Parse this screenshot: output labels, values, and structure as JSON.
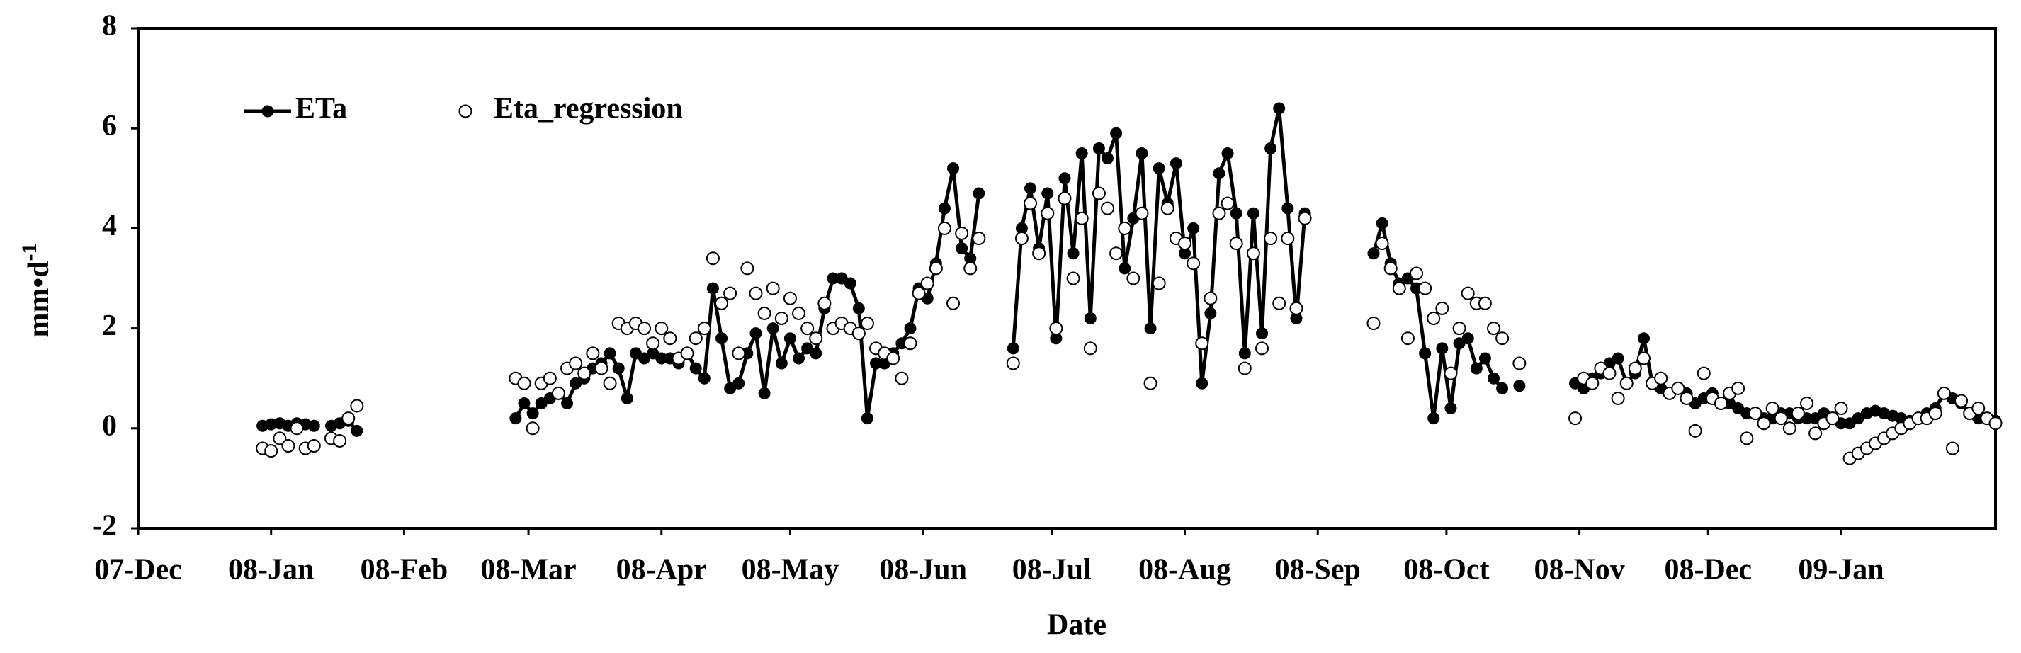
{
  "chart_data": {
    "type": "line",
    "x_label": "Date",
    "y_label": "mm•d",
    "y_label_superscript": "-1",
    "xlim": [
      0,
      433
    ],
    "ylim": [
      -2,
      8
    ],
    "yticks": [
      -2,
      0,
      2,
      4,
      6,
      8
    ],
    "xticks": [
      {
        "value": 0,
        "label": "07-Dec"
      },
      {
        "value": 31,
        "label": "08-Jan"
      },
      {
        "value": 62,
        "label": "08-Feb"
      },
      {
        "value": 91,
        "label": "08-Mar"
      },
      {
        "value": 122,
        "label": "08-Apr"
      },
      {
        "value": 152,
        "label": "08-May"
      },
      {
        "value": 183,
        "label": "08-Jun"
      },
      {
        "value": 213,
        "label": "08-Jul"
      },
      {
        "value": 244,
        "label": "08-Aug"
      },
      {
        "value": 275,
        "label": "08-Sep"
      },
      {
        "value": 305,
        "label": "08-Oct"
      },
      {
        "value": 336,
        "label": "08-Nov"
      },
      {
        "value": 366,
        "label": "08-Dec"
      },
      {
        "value": 397,
        "label": "09-Jan"
      }
    ],
    "grid": false,
    "legend_position": "upper left",
    "x": [
      29,
      31,
      33,
      35,
      37,
      39,
      41,
      43,
      45,
      47,
      49,
      51,
      70,
      88,
      90,
      92,
      94,
      96,
      98,
      100,
      102,
      104,
      106,
      108,
      110,
      112,
      114,
      116,
      118,
      120,
      122,
      124,
      126,
      128,
      130,
      132,
      134,
      136,
      138,
      140,
      142,
      144,
      146,
      148,
      150,
      152,
      154,
      156,
      158,
      160,
      162,
      164,
      166,
      168,
      170,
      172,
      174,
      176,
      178,
      180,
      182,
      184,
      186,
      188,
      190,
      192,
      194,
      196,
      200,
      204,
      206,
      208,
      210,
      212,
      214,
      216,
      218,
      220,
      222,
      224,
      226,
      228,
      230,
      232,
      234,
      236,
      238,
      240,
      242,
      244,
      246,
      248,
      250,
      252,
      254,
      256,
      258,
      260,
      262,
      264,
      266,
      268,
      270,
      272,
      280,
      288,
      290,
      292,
      294,
      296,
      298,
      300,
      302,
      304,
      306,
      308,
      310,
      312,
      314,
      316,
      318,
      320,
      322,
      328,
      335,
      337,
      339,
      341,
      343,
      345,
      347,
      349,
      351,
      353,
      355,
      357,
      359,
      361,
      363,
      365,
      367,
      369,
      371,
      373,
      375,
      377,
      379,
      381,
      383,
      385,
      387,
      389,
      391,
      393,
      395,
      397,
      399,
      401,
      403,
      405,
      407,
      409,
      411,
      413,
      415,
      417,
      419,
      421,
      423,
      425,
      427,
      429,
      431,
      433
    ],
    "series": [
      {
        "name": "ETa",
        "color": "#000000",
        "style": "line",
        "values": [
          0.05,
          0.08,
          0.1,
          0.05,
          0.1,
          0.08,
          0.05,
          null,
          0.05,
          0.1,
          0.15,
          -0.05,
          null,
          0.2,
          0.5,
          0.3,
          0.5,
          0.6,
          0.7,
          0.5,
          0.9,
          1.0,
          1.2,
          1.3,
          1.5,
          1.2,
          0.6,
          1.5,
          1.4,
          1.5,
          1.4,
          1.4,
          1.3,
          1.5,
          1.2,
          1.0,
          2.8,
          1.8,
          0.8,
          0.9,
          1.5,
          1.9,
          0.7,
          2.0,
          1.3,
          1.8,
          1.4,
          1.6,
          1.5,
          2.4,
          3.0,
          3.0,
          2.9,
          2.4,
          0.2,
          1.3,
          1.3,
          1.5,
          1.7,
          2.0,
          2.8,
          2.6,
          3.3,
          4.4,
          5.2,
          3.6,
          3.4,
          4.7,
          null,
          1.6,
          4.0,
          4.8,
          3.6,
          4.7,
          1.8,
          5.0,
          3.5,
          5.5,
          2.2,
          5.6,
          5.4,
          5.9,
          3.2,
          4.2,
          5.5,
          2.0,
          5.2,
          4.5,
          5.3,
          3.5,
          4.0,
          0.9,
          2.3,
          5.1,
          5.5,
          4.3,
          1.5,
          4.3,
          1.9,
          5.6,
          6.4,
          4.4,
          2.2,
          4.3,
          null,
          3.5,
          4.1,
          3.3,
          2.9,
          3.0,
          2.8,
          1.5,
          0.2,
          1.6,
          0.4,
          1.7,
          1.8,
          1.2,
          1.4,
          1.0,
          0.8,
          null,
          0.85,
          null,
          0.9,
          0.8,
          1.0,
          1.1,
          1.3,
          1.4,
          0.9,
          1.1,
          1.8,
          0.9,
          0.8,
          0.7,
          0.8,
          0.7,
          0.5,
          0.6,
          0.7,
          0.5,
          0.5,
          0.4,
          0.3,
          0.3,
          0.2,
          0.2,
          0.3,
          0.3,
          0.2,
          0.2,
          0.2,
          0.3,
          0.2,
          0.1,
          0.1,
          0.2,
          0.3,
          0.35,
          0.3,
          0.25,
          0.2,
          0.15,
          0.2,
          0.3,
          0.4,
          0.7,
          0.6,
          0.5,
          0.3,
          0.2,
          0.2,
          0.15
        ]
      },
      {
        "name": "Eta_regression",
        "color": "#ffffff",
        "style": "markers",
        "values": [
          -0.4,
          -0.45,
          -0.2,
          -0.35,
          0,
          -0.4,
          -0.35,
          null,
          -0.2,
          -0.25,
          0.2,
          0.45,
          null,
          1.0,
          0.9,
          0.0,
          0.9,
          1.0,
          0.7,
          1.2,
          1.3,
          1.1,
          1.5,
          1.2,
          0.9,
          2.1,
          2.0,
          2.1,
          2.0,
          1.7,
          2.0,
          1.8,
          1.4,
          1.5,
          1.8,
          2.0,
          3.4,
          2.5,
          2.7,
          1.5,
          3.2,
          2.7,
          2.3,
          2.8,
          2.2,
          2.6,
          2.3,
          2.0,
          1.8,
          2.5,
          2.0,
          2.1,
          2.0,
          1.9,
          2.1,
          1.6,
          1.5,
          1.4,
          1.0,
          1.7,
          2.7,
          2.9,
          3.2,
          4.0,
          2.5,
          3.9,
          3.2,
          3.8,
          null,
          1.3,
          3.8,
          4.5,
          3.5,
          4.3,
          2.0,
          4.6,
          3.0,
          4.2,
          1.6,
          4.7,
          4.4,
          3.5,
          4.0,
          3.0,
          4.3,
          0.9,
          2.9,
          4.4,
          3.8,
          3.7,
          3.3,
          1.7,
          2.6,
          4.3,
          4.5,
          3.7,
          1.2,
          3.5,
          1.6,
          3.8,
          2.5,
          3.8,
          2.4,
          4.2,
          null,
          2.1,
          3.7,
          3.2,
          2.8,
          1.8,
          3.1,
          2.8,
          2.2,
          2.4,
          1.1,
          2.0,
          2.7,
          2.5,
          2.5,
          2.0,
          1.8,
          null,
          1.3,
          null,
          0.2,
          1.0,
          0.9,
          1.2,
          1.1,
          0.6,
          0.9,
          1.2,
          1.4,
          0.9,
          1.0,
          0.7,
          0.8,
          0.6,
          -0.05,
          1.1,
          0.6,
          0.5,
          0.7,
          0.8,
          -0.2,
          0.3,
          0.1,
          0.4,
          0.2,
          0.0,
          0.3,
          0.5,
          -0.1,
          0.1,
          0.2,
          0.4,
          -0.6,
          -0.5,
          -0.4,
          -0.3,
          -0.2,
          -0.1,
          0.0,
          0.1,
          0.2,
          0.2,
          0.3,
          0.7,
          -0.4,
          0.55,
          0.3,
          0.4,
          0.2,
          0.1
        ]
      }
    ]
  }
}
